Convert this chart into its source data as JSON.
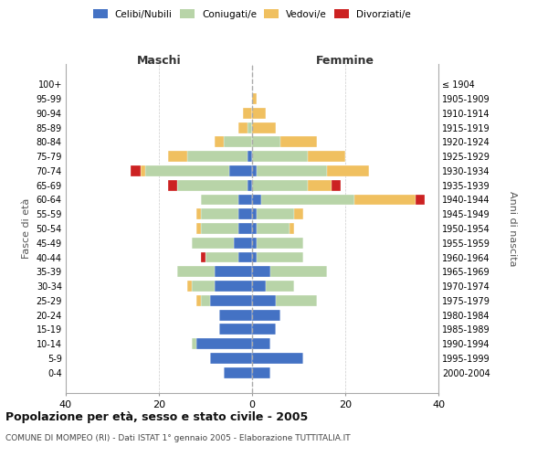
{
  "age_groups": [
    "100+",
    "95-99",
    "90-94",
    "85-89",
    "80-84",
    "75-79",
    "70-74",
    "65-69",
    "60-64",
    "55-59",
    "50-54",
    "45-49",
    "40-44",
    "35-39",
    "30-34",
    "25-29",
    "20-24",
    "15-19",
    "10-14",
    "5-9",
    "0-4"
  ],
  "birth_years": [
    "≤ 1904",
    "1905-1909",
    "1910-1914",
    "1915-1919",
    "1920-1924",
    "1925-1929",
    "1930-1934",
    "1935-1939",
    "1940-1944",
    "1945-1949",
    "1950-1954",
    "1955-1959",
    "1960-1964",
    "1965-1969",
    "1970-1974",
    "1975-1979",
    "1980-1984",
    "1985-1989",
    "1990-1994",
    "1995-1999",
    "2000-2004"
  ],
  "colors": {
    "celibe": "#4472C4",
    "coniugato": "#B8D4A8",
    "vedovo": "#F0C060",
    "divorziato": "#CC2222"
  },
  "maschi": {
    "celibe": [
      0,
      0,
      0,
      0,
      0,
      1,
      5,
      1,
      3,
      3,
      3,
      4,
      3,
      8,
      8,
      9,
      7,
      7,
      12,
      9,
      6
    ],
    "coniugato": [
      0,
      0,
      0,
      1,
      6,
      13,
      18,
      15,
      8,
      8,
      8,
      9,
      7,
      8,
      5,
      2,
      0,
      0,
      1,
      0,
      0
    ],
    "vedovo": [
      0,
      0,
      2,
      2,
      2,
      4,
      1,
      0,
      0,
      1,
      1,
      0,
      0,
      0,
      1,
      1,
      0,
      0,
      0,
      0,
      0
    ],
    "divorziato": [
      0,
      0,
      0,
      0,
      0,
      0,
      2,
      2,
      0,
      0,
      0,
      0,
      1,
      0,
      0,
      0,
      0,
      0,
      0,
      0,
      0
    ]
  },
  "femmine": {
    "nubile": [
      0,
      0,
      0,
      0,
      0,
      0,
      1,
      0,
      2,
      1,
      1,
      1,
      1,
      4,
      3,
      5,
      6,
      5,
      4,
      11,
      4
    ],
    "coniugata": [
      0,
      0,
      0,
      0,
      6,
      12,
      15,
      12,
      20,
      8,
      7,
      10,
      10,
      12,
      6,
      9,
      0,
      0,
      0,
      0,
      0
    ],
    "vedova": [
      0,
      1,
      3,
      5,
      8,
      8,
      9,
      5,
      13,
      2,
      1,
      0,
      0,
      0,
      0,
      0,
      0,
      0,
      0,
      0,
      0
    ],
    "divorziata": [
      0,
      0,
      0,
      0,
      0,
      0,
      0,
      2,
      2,
      0,
      0,
      0,
      0,
      0,
      0,
      0,
      0,
      0,
      0,
      0,
      0
    ]
  },
  "xlim": 40,
  "title": "Popolazione per età, sesso e stato civile - 2005",
  "subtitle": "COMUNE DI MOMPEO (RI) - Dati ISTAT 1° gennaio 2005 - Elaborazione TUTTITALIA.IT",
  "xlabel_left": "Maschi",
  "xlabel_right": "Femmine",
  "ylabel_left": "Fasce di età",
  "ylabel_right": "Anni di nascita",
  "legend_labels": [
    "Celibi/Nubili",
    "Coniugati/e",
    "Vedovi/e",
    "Divorziati/e"
  ],
  "background_color": "#ffffff",
  "grid_color": "#cccccc",
  "xtick_vals": [
    -40,
    -20,
    0,
    20,
    40
  ],
  "xtick_labels": [
    "40",
    "20",
    "0",
    "20",
    "40"
  ]
}
